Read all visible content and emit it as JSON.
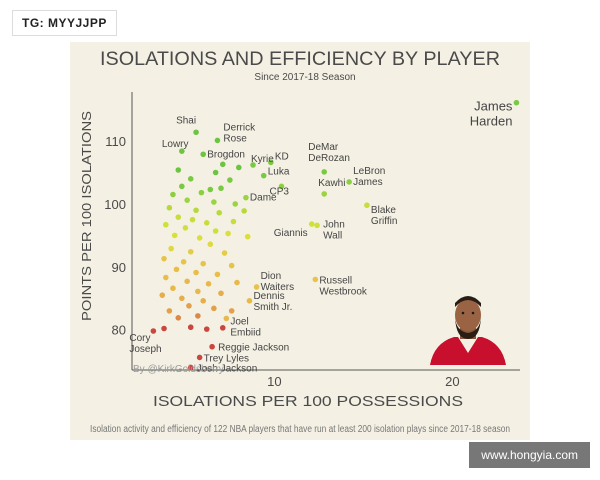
{
  "overlay": {
    "tag": "TG: MYYJJPP",
    "watermark": "www.hongyia.com",
    "credit": "By @KirkGoldsberry"
  },
  "chart_data": {
    "type": "scatter",
    "title": "ISOLATIONS AND EFFICIENCY BY PLAYER",
    "subtitle": "Since 2017-18 Season",
    "xlabel": "ISOLATIONS PER 100 POSSESSIONS",
    "ylabel": "POINTS PER 100 ISOLATIONS",
    "footnote": "Isolation activity and efficiency of 122 NBA players that have run at least 200 isolation plays since 2017-18 season",
    "xlim": [
      2,
      23.8
    ],
    "ylim": [
      73.6,
      117.8
    ],
    "xticks": [
      10,
      20
    ],
    "yticks": [
      80,
      90,
      100,
      110
    ],
    "grid": false,
    "color_scale": {
      "high": "#6dc441",
      "mid": "#cfe03a",
      "mid_low": "#e8b94a",
      "low": "#c9473f"
    },
    "labeled_points": [
      {
        "name": "James Harden",
        "x": 23.6,
        "y": 116.1,
        "color": "#7ac943"
      },
      {
        "name": "Shai",
        "x": 5.6,
        "y": 111.4,
        "color": "#6dc441"
      },
      {
        "name": "Derrick Rose",
        "x": 6.8,
        "y": 110.1,
        "color": "#6dc441"
      },
      {
        "name": "Lowry",
        "x": 4.8,
        "y": 108.4,
        "color": "#6dc441"
      },
      {
        "name": "Brogdon",
        "x": 6.0,
        "y": 107.9,
        "color": "#6dc441"
      },
      {
        "name": "Kyrie",
        "x": 8.8,
        "y": 106.2,
        "color": "#7ac943"
      },
      {
        "name": "KD",
        "x": 9.8,
        "y": 106.6,
        "color": "#7ac943"
      },
      {
        "name": "Luka",
        "x": 9.4,
        "y": 104.5,
        "color": "#7ac943"
      },
      {
        "name": "DeMar DeRozan",
        "x": 12.8,
        "y": 105.1,
        "color": "#7ac943"
      },
      {
        "name": "LeBron James",
        "x": 14.2,
        "y": 103.5,
        "color": "#8ccf42"
      },
      {
        "name": "CP3",
        "x": 10.4,
        "y": 102.8,
        "color": "#8ccf42"
      },
      {
        "name": "Dame",
        "x": 8.4,
        "y": 101.0,
        "color": "#9ad442"
      },
      {
        "name": "Kawhi",
        "x": 12.8,
        "y": 101.6,
        "color": "#9ad442"
      },
      {
        "name": "Blake Griffin",
        "x": 15.2,
        "y": 99.8,
        "color": "#c9dc3a"
      },
      {
        "name": "Giannis",
        "x": 12.1,
        "y": 96.8,
        "color": "#cfe03a"
      },
      {
        "name": "John Wall",
        "x": 12.4,
        "y": 96.6,
        "color": "#cfe03a"
      },
      {
        "name": "Dion Waiters",
        "x": 9.0,
        "y": 86.8,
        "color": "#e8c24a"
      },
      {
        "name": "Russell Westbrook",
        "x": 12.3,
        "y": 88.0,
        "color": "#e8c24a"
      },
      {
        "name": "Dennis Smith Jr.",
        "x": 8.6,
        "y": 84.6,
        "color": "#e8b94a"
      },
      {
        "name": "Joel Embiid",
        "x": 7.3,
        "y": 81.8,
        "color": "#e8b94a"
      },
      {
        "name": "Cory Joseph",
        "x": 3.2,
        "y": 79.8,
        "color": "#c9473f"
      },
      {
        "name": "Reggie Jackson",
        "x": 6.5,
        "y": 77.3,
        "color": "#c9473f"
      },
      {
        "name": "Trey Lyles",
        "x": 5.8,
        "y": 75.6,
        "color": "#c9473f"
      },
      {
        "name": "Josh Jackson",
        "x": 5.3,
        "y": 74.0,
        "color": "#c9473f"
      }
    ],
    "other_points": [
      {
        "x": 4.6,
        "y": 105.4,
        "color": "#6dc441"
      },
      {
        "x": 6.7,
        "y": 105.0,
        "color": "#6dc441"
      },
      {
        "x": 8.0,
        "y": 105.8,
        "color": "#6dc441"
      },
      {
        "x": 7.1,
        "y": 106.3,
        "color": "#6dc441"
      },
      {
        "x": 5.3,
        "y": 104.0,
        "color": "#7ac943"
      },
      {
        "x": 7.5,
        "y": 103.8,
        "color": "#7ac943"
      },
      {
        "x": 4.8,
        "y": 102.8,
        "color": "#7ac943"
      },
      {
        "x": 6.4,
        "y": 102.3,
        "color": "#7ac943"
      },
      {
        "x": 7.0,
        "y": 102.5,
        "color": "#7ac943"
      },
      {
        "x": 5.9,
        "y": 101.8,
        "color": "#8ccf42"
      },
      {
        "x": 4.3,
        "y": 101.5,
        "color": "#8ccf42"
      },
      {
        "x": 5.1,
        "y": 100.6,
        "color": "#9ad442"
      },
      {
        "x": 6.6,
        "y": 100.3,
        "color": "#9ad442"
      },
      {
        "x": 7.8,
        "y": 100.0,
        "color": "#9ad442"
      },
      {
        "x": 4.1,
        "y": 99.4,
        "color": "#b7d93c"
      },
      {
        "x": 5.6,
        "y": 99.0,
        "color": "#b7d93c"
      },
      {
        "x": 6.9,
        "y": 98.6,
        "color": "#b7d93c"
      },
      {
        "x": 8.3,
        "y": 98.9,
        "color": "#b7d93c"
      },
      {
        "x": 4.6,
        "y": 97.9,
        "color": "#c9dc3a"
      },
      {
        "x": 5.4,
        "y": 97.5,
        "color": "#c9dc3a"
      },
      {
        "x": 6.2,
        "y": 97.0,
        "color": "#c9dc3a"
      },
      {
        "x": 7.7,
        "y": 97.2,
        "color": "#c9dc3a"
      },
      {
        "x": 3.9,
        "y": 96.7,
        "color": "#cfe03a"
      },
      {
        "x": 5.0,
        "y": 96.2,
        "color": "#cfe03a"
      },
      {
        "x": 6.7,
        "y": 95.7,
        "color": "#cfe03a"
      },
      {
        "x": 7.4,
        "y": 95.3,
        "color": "#d9df3c"
      },
      {
        "x": 4.4,
        "y": 95.0,
        "color": "#d9df3c"
      },
      {
        "x": 5.8,
        "y": 94.6,
        "color": "#d9df3c"
      },
      {
        "x": 8.5,
        "y": 94.8,
        "color": "#d9df3c"
      },
      {
        "x": 6.4,
        "y": 93.6,
        "color": "#e0d843"
      },
      {
        "x": 4.2,
        "y": 92.9,
        "color": "#e0d843"
      },
      {
        "x": 5.3,
        "y": 92.4,
        "color": "#e3cc47"
      },
      {
        "x": 7.2,
        "y": 92.2,
        "color": "#e3cc47"
      },
      {
        "x": 3.8,
        "y": 91.3,
        "color": "#e6c449"
      },
      {
        "x": 4.9,
        "y": 90.8,
        "color": "#e6c449"
      },
      {
        "x": 6.0,
        "y": 90.5,
        "color": "#e6c449"
      },
      {
        "x": 7.6,
        "y": 90.2,
        "color": "#e6c449"
      },
      {
        "x": 4.5,
        "y": 89.6,
        "color": "#e8bd4a"
      },
      {
        "x": 5.6,
        "y": 89.1,
        "color": "#e8bd4a"
      },
      {
        "x": 6.8,
        "y": 88.8,
        "color": "#e8bd4a"
      },
      {
        "x": 3.9,
        "y": 88.3,
        "color": "#e8bd4a"
      },
      {
        "x": 5.1,
        "y": 87.7,
        "color": "#e8b94a"
      },
      {
        "x": 6.3,
        "y": 87.3,
        "color": "#e8b94a"
      },
      {
        "x": 7.9,
        "y": 87.5,
        "color": "#e8b94a"
      },
      {
        "x": 4.3,
        "y": 86.6,
        "color": "#e8b94a"
      },
      {
        "x": 5.7,
        "y": 86.1,
        "color": "#e8b94a"
      },
      {
        "x": 7.0,
        "y": 85.8,
        "color": "#e6ad4a"
      },
      {
        "x": 3.7,
        "y": 85.5,
        "color": "#e6ad4a"
      },
      {
        "x": 4.8,
        "y": 85.0,
        "color": "#e6ad4a"
      },
      {
        "x": 6.0,
        "y": 84.6,
        "color": "#e6ad4a"
      },
      {
        "x": 5.2,
        "y": 83.8,
        "color": "#e3a04a"
      },
      {
        "x": 6.6,
        "y": 83.4,
        "color": "#e3a04a"
      },
      {
        "x": 4.1,
        "y": 83.0,
        "color": "#e3a04a"
      },
      {
        "x": 7.6,
        "y": 83.0,
        "color": "#e3a04a"
      },
      {
        "x": 5.7,
        "y": 82.2,
        "color": "#dc8848"
      },
      {
        "x": 4.6,
        "y": 81.9,
        "color": "#dc8848"
      },
      {
        "x": 3.8,
        "y": 80.2,
        "color": "#c9473f"
      },
      {
        "x": 5.3,
        "y": 80.4,
        "color": "#c9473f"
      },
      {
        "x": 6.2,
        "y": 80.1,
        "color": "#c9473f"
      },
      {
        "x": 7.1,
        "y": 80.3,
        "color": "#c9473f"
      }
    ]
  }
}
